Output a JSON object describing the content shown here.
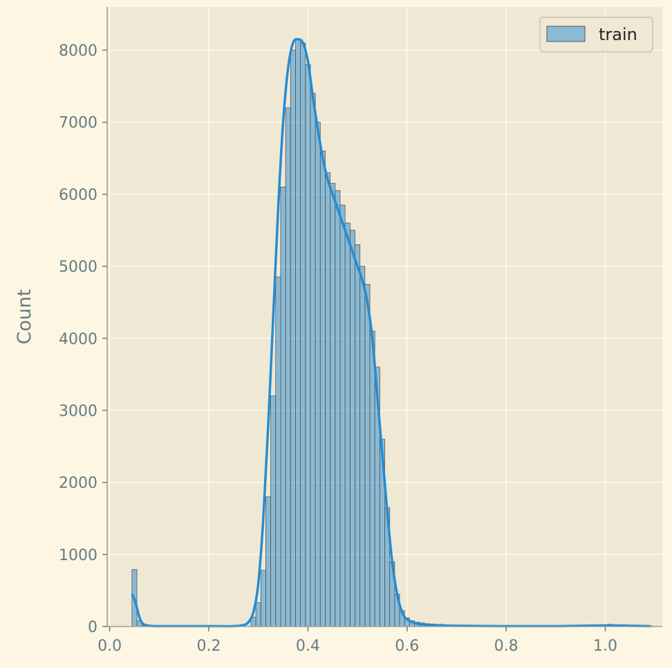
{
  "chart_data": {
    "type": "bar",
    "title": "",
    "xlabel": "",
    "ylabel": "Count",
    "xlim": [
      -0.005,
      1.115
    ],
    "ylim": [
      0,
      8600
    ],
    "xticks": [
      0.0,
      0.2,
      0.4,
      0.6,
      0.8,
      1.0
    ],
    "xtick_labels": [
      "0.0",
      "0.2",
      "0.4",
      "0.6",
      "0.8",
      "1.0"
    ],
    "yticks": [
      0,
      1000,
      2000,
      3000,
      4000,
      5000,
      6000,
      7000,
      8000
    ],
    "ytick_labels": [
      "0",
      "1000",
      "2000",
      "3000",
      "4000",
      "5000",
      "6000",
      "7000",
      "8000"
    ],
    "grid": true,
    "legend_position": "top-right",
    "bin_width": 0.01,
    "series": [
      {
        "name": "train",
        "bin_start": [
          0.045,
          0.055,
          0.065,
          0.075,
          0.085,
          0.095,
          0.105,
          0.115,
          0.125,
          0.135,
          0.145,
          0.155,
          0.165,
          0.175,
          0.185,
          0.195,
          0.205,
          0.215,
          0.225,
          0.235,
          0.245,
          0.255,
          0.265,
          0.275,
          0.285,
          0.295,
          0.305,
          0.315,
          0.325,
          0.335,
          0.345,
          0.355,
          0.365,
          0.375,
          0.385,
          0.395,
          0.405,
          0.415,
          0.425,
          0.435,
          0.445,
          0.455,
          0.465,
          0.475,
          0.485,
          0.495,
          0.505,
          0.515,
          0.525,
          0.535,
          0.545,
          0.555,
          0.565,
          0.575,
          0.585,
          0.595,
          0.605,
          0.615,
          0.625,
          0.635,
          0.645,
          0.655,
          0.665,
          0.675,
          0.685,
          0.695,
          0.705,
          0.715,
          0.725,
          0.735,
          0.745,
          0.755,
          0.765,
          0.775,
          0.785,
          0.795,
          0.805,
          0.815,
          0.825,
          0.835,
          0.845,
          0.855,
          0.865,
          0.875,
          0.885,
          0.895,
          0.905,
          0.915,
          0.925,
          0.935,
          0.945,
          0.955,
          0.965,
          0.975,
          0.985,
          0.995,
          1.005,
          1.015,
          1.025,
          1.035,
          1.045,
          1.055,
          1.065,
          1.075,
          1.085
        ],
        "counts": [
          790,
          80,
          10,
          0,
          0,
          0,
          0,
          0,
          0,
          0,
          0,
          0,
          0,
          0,
          0,
          0,
          0,
          0,
          0,
          0,
          0,
          0,
          0,
          0,
          130,
          330,
          780,
          1800,
          3200,
          4850,
          6100,
          7200,
          8000,
          8150,
          8100,
          7800,
          7400,
          7000,
          6600,
          6300,
          6150,
          6050,
          5850,
          5600,
          5500,
          5300,
          5000,
          4750,
          4100,
          3600,
          2600,
          1650,
          900,
          450,
          220,
          120,
          80,
          60,
          50,
          40,
          35,
          30,
          30,
          25,
          20,
          20,
          15,
          15,
          15,
          15,
          10,
          10,
          10,
          10,
          10,
          10,
          10,
          10,
          10,
          10,
          10,
          10,
          10,
          10,
          10,
          10,
          10,
          10,
          10,
          10,
          10,
          10,
          10,
          15,
          20,
          25,
          30,
          25,
          20,
          15,
          10,
          10,
          10,
          10,
          10
        ],
        "kde_x": [
          0.045,
          0.05,
          0.055,
          0.06,
          0.065,
          0.07,
          0.08,
          0.1,
          0.15,
          0.2,
          0.25,
          0.27,
          0.28,
          0.29,
          0.3,
          0.31,
          0.32,
          0.33,
          0.34,
          0.35,
          0.36,
          0.37,
          0.38,
          0.39,
          0.4,
          0.41,
          0.42,
          0.43,
          0.44,
          0.45,
          0.46,
          0.47,
          0.48,
          0.49,
          0.5,
          0.51,
          0.52,
          0.53,
          0.54,
          0.55,
          0.56,
          0.57,
          0.58,
          0.59,
          0.6,
          0.62,
          0.65,
          0.7,
          0.8,
          0.9,
          0.95,
          1.0,
          1.05,
          1.09
        ],
        "kde_y": [
          450,
          380,
          260,
          130,
          55,
          25,
          10,
          5,
          5,
          5,
          5,
          20,
          60,
          200,
          600,
          1500,
          2800,
          4300,
          5800,
          7000,
          7750,
          8100,
          8150,
          8100,
          7850,
          7350,
          6900,
          6500,
          6200,
          6000,
          5800,
          5600,
          5400,
          5200,
          5000,
          4800,
          4500,
          4000,
          3200,
          2400,
          1600,
          900,
          450,
          200,
          100,
          40,
          20,
          10,
          5,
          5,
          10,
          15,
          10,
          5
        ]
      }
    ]
  },
  "colors": {
    "figure_bg": "#fdf6e3",
    "axes_bg": "#eee8d5",
    "grid": "#fdf6e3",
    "bar_fill": "#268bd2",
    "bar_fill_opacity": 0.5,
    "bar_edge": "#555555",
    "kde_line": "#268bd2",
    "tick_text": "#657b83",
    "spine": "#93a1a1"
  }
}
